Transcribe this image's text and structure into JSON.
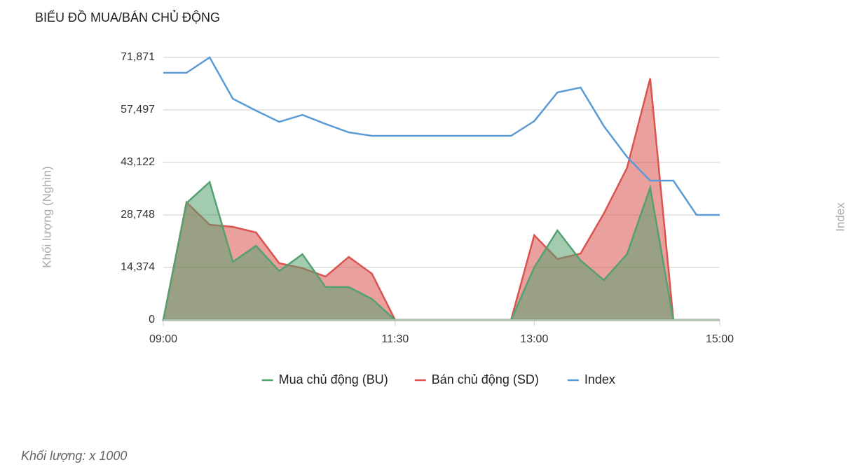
{
  "chart_data": {
    "type": "area",
    "title": "BIỂU ĐỒ MUA/BÁN CHỦ ĐỘNG",
    "y_label": "Khối lượng (Nghìn)",
    "y2_label": "Index",
    "note": "Khối lượng: x 1000",
    "x": [
      "09:00",
      "09:15",
      "09:30",
      "09:45",
      "10:00",
      "10:15",
      "10:30",
      "10:45",
      "11:00",
      "11:15",
      "11:30",
      "11:45",
      "12:00",
      "12:15",
      "12:30",
      "12:45",
      "13:00",
      "13:15",
      "13:30",
      "13:45",
      "14:00",
      "14:15",
      "14:30",
      "14:45",
      "15:00"
    ],
    "xlim": [
      "09:00",
      "15:00"
    ],
    "xticks": [
      "09:00",
      "11:30",
      "13:00",
      "15:00"
    ],
    "ylim": [
      0,
      71871
    ],
    "yticks": [
      0,
      {
        "value": 14374,
        "label": "14,374"
      },
      {
        "value": 28748,
        "label": "28,748"
      },
      {
        "value": 43122,
        "label": "43,122"
      },
      {
        "value": 57497,
        "label": "57,497"
      },
      {
        "value": 71871,
        "label": "71,871"
      }
    ],
    "y2lim": [
      0,
      71871
    ],
    "grid": true,
    "legend": "bottom",
    "series": [
      {
        "name": "Mua chủ động (BU)",
        "color": "#55a070",
        "values": [
          0,
          32000,
          37750,
          15900,
          20300,
          13400,
          18000,
          9000,
          9000,
          5750,
          0,
          0,
          0,
          0,
          0,
          0,
          14374,
          24530,
          16290,
          10920,
          18000,
          36220,
          0,
          0,
          0
        ]
      },
      {
        "name": "Bán chủ động (SD)",
        "color": "#d9534f",
        "values": [
          0,
          32200,
          26060,
          25490,
          23950,
          15520,
          14180,
          11880,
          17250,
          12650,
          0,
          0,
          0,
          0,
          0,
          0,
          23190,
          16670,
          18200,
          29130,
          41590,
          66120,
          0,
          0,
          0
        ]
      },
      {
        "name": "Index",
        "color": "#5b9bd5",
        "axis": "y2",
        "values": [
          67650,
          67650,
          71871,
          60560,
          57300,
          54230,
          56150,
          53660,
          51360,
          50400,
          50400,
          50400,
          50400,
          50400,
          50400,
          50400,
          54430,
          62290,
          63630,
          53090,
          44650,
          38140,
          38140,
          28750,
          28750
        ]
      }
    ]
  }
}
